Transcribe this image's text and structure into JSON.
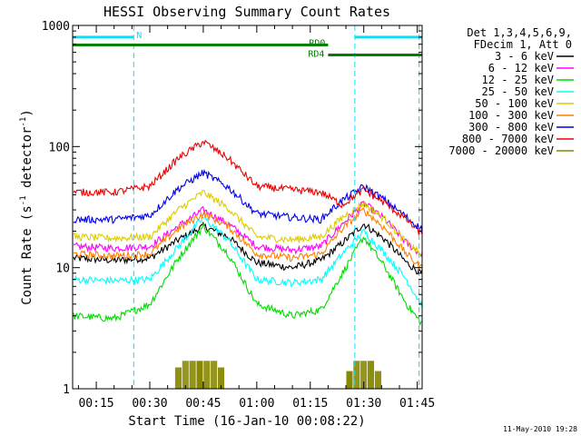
{
  "chart_data": {
    "type": "line",
    "title": "HESSI Observing Summary Count Rates",
    "xlabel": "Start Time (16-Jan-10 00:08:22)",
    "ylabel_main": "Count Rate (s",
    "ylabel_sup1": "-1",
    "ylabel_mid": " detector",
    "ylabel_sup2": "-1",
    "ylabel_end": ")",
    "yscale": "log",
    "ylim": [
      1,
      1000
    ],
    "xlim": [
      "00:08:22",
      "01:46:22"
    ],
    "x_ticks": [
      "00:15",
      "00:30",
      "00:45",
      "01:00",
      "01:15",
      "01:30",
      "01:45"
    ],
    "y_ticks": [
      "1",
      "10",
      "100",
      "1000"
    ],
    "footer_date": "11-May-2010 19:28",
    "legend_header": [
      "Det 1,3,4,5,6,9,",
      "FDecim 1, Att 0"
    ],
    "legend": [
      {
        "label": "3 - 6 keV",
        "color": "#000000"
      },
      {
        "label": "6 - 12 keV",
        "color": "#ff00ff"
      },
      {
        "label": "12 - 25 keV",
        "color": "#00dd00"
      },
      {
        "label": "25 - 50 keV",
        "color": "#00ffff"
      },
      {
        "label": "50 - 100 keV",
        "color": "#ddcc00"
      },
      {
        "label": "100 - 300 keV",
        "color": "#ff8000"
      },
      {
        "label": "300 - 800 keV",
        "color": "#0000ee"
      },
      {
        "label": "800 - 7000 keV",
        "color": "#ee0000"
      },
      {
        "label": "7000 - 20000 keV",
        "color": "#888800"
      }
    ],
    "flags": [
      {
        "label": "N",
        "color": "#00e5ff",
        "start": "00:08:22",
        "end": "00:25:30",
        "level": 800
      },
      {
        "label": "N",
        "color": "#00e5ff",
        "start": "01:27:30",
        "end": "01:46:22",
        "level": 800
      },
      {
        "label": "RD0",
        "color": "#008000",
        "start": "00:08:22",
        "end": "01:20:00",
        "level": 690
      },
      {
        "label": "RD4",
        "color": "#008000",
        "start": "01:20:00",
        "end": "01:46:22",
        "level": 570
      }
    ],
    "night_boundaries": [
      "00:25:30",
      "01:27:30",
      "01:45:30"
    ],
    "series": [
      {
        "name": "3 - 6 keV",
        "color": "#000000",
        "x": [
          "00:08:22",
          "00:20",
          "00:30",
          "00:38",
          "00:45",
          "00:52",
          "01:00",
          "01:10",
          "01:18",
          "01:24",
          "01:30",
          "01:36",
          "01:42",
          "01:46"
        ],
        "y": [
          12,
          11.5,
          12,
          17,
          22,
          18,
          11,
          10,
          11.5,
          16,
          23,
          17,
          11,
          9
        ]
      },
      {
        "name": "6 - 12 keV",
        "color": "#ff00ff",
        "x": [
          "00:08:22",
          "00:20",
          "00:30",
          "00:38",
          "00:45",
          "00:52",
          "01:00",
          "01:10",
          "01:18",
          "01:24",
          "01:30",
          "01:36",
          "01:42",
          "01:46"
        ],
        "y": [
          15,
          14.5,
          15,
          22,
          30,
          23,
          15,
          14,
          15,
          23,
          34,
          25,
          16,
          13
        ]
      },
      {
        "name": "12 - 25 keV",
        "color": "#00dd00",
        "x": [
          "00:08:22",
          "00:20",
          "00:30",
          "00:38",
          "00:45",
          "00:52",
          "01:00",
          "01:10",
          "01:18",
          "01:24",
          "01:30",
          "01:36",
          "01:42",
          "01:46"
        ],
        "y": [
          4,
          3.8,
          5,
          12,
          22,
          13,
          5,
          4,
          4.5,
          9,
          18,
          10,
          5,
          3.5
        ]
      },
      {
        "name": "25 - 50 keV",
        "color": "#00ffff",
        "x": [
          "00:08:22",
          "00:20",
          "00:30",
          "00:38",
          "00:45",
          "00:52",
          "01:00",
          "01:10",
          "01:18",
          "01:24",
          "01:30",
          "01:36",
          "01:42",
          "01:46"
        ],
        "y": [
          8,
          7.8,
          8,
          15,
          26,
          17,
          8,
          7.5,
          8,
          13,
          20,
          13,
          8,
          5
        ]
      },
      {
        "name": "50 - 100 keV",
        "color": "#ddcc00",
        "x": [
          "00:08:22",
          "00:20",
          "00:30",
          "00:38",
          "00:45",
          "00:52",
          "01:00",
          "01:10",
          "01:18",
          "01:24",
          "01:30",
          "01:36",
          "01:42",
          "01:46"
        ],
        "y": [
          18,
          17.5,
          18,
          30,
          42,
          31,
          18,
          17,
          18,
          26,
          34,
          25,
          16,
          13
        ]
      },
      {
        "name": "100 - 300 keV",
        "color": "#ff8000",
        "x": [
          "00:08:22",
          "00:20",
          "00:30",
          "00:38",
          "00:45",
          "00:52",
          "01:00",
          "01:10",
          "01:18",
          "01:24",
          "01:30",
          "01:36",
          "01:42",
          "01:46"
        ],
        "y": [
          13,
          12.5,
          13,
          21,
          28,
          22,
          13,
          12,
          13,
          21,
          30,
          21,
          13,
          10
        ]
      },
      {
        "name": "300 - 800 keV",
        "color": "#0000ee",
        "x": [
          "00:08:22",
          "00:20",
          "00:30",
          "00:38",
          "00:45",
          "00:52",
          "01:00",
          "01:10",
          "01:18",
          "01:24",
          "01:30",
          "01:36",
          "01:42",
          "01:46"
        ],
        "y": [
          25,
          25,
          27,
          45,
          61,
          46,
          28,
          26,
          25,
          36,
          47,
          36,
          26,
          21
        ]
      },
      {
        "name": "800 - 7000 keV",
        "color": "#ee0000",
        "x": [
          "00:08:22",
          "00:20",
          "00:30",
          "00:38",
          "00:45",
          "00:52",
          "01:00",
          "01:10",
          "01:18",
          "01:24",
          "01:30",
          "01:36",
          "01:42",
          "01:46"
        ],
        "y": [
          42,
          42,
          47,
          80,
          110,
          80,
          47,
          44,
          42,
          33,
          44,
          34,
          25,
          19
        ]
      },
      {
        "name": "7000 - 20000 keV",
        "color": "#888800",
        "x": [
          "00:38",
          "00:40",
          "00:42",
          "00:44",
          "00:46",
          "00:48",
          "00:50",
          "01:26",
          "01:28",
          "01:30",
          "01:32",
          "01:34"
        ],
        "y": [
          1.5,
          1.7,
          1.7,
          1.7,
          1.7,
          1.7,
          1.5,
          1.4,
          1.7,
          1.7,
          1.7,
          1.4
        ]
      }
    ]
  }
}
